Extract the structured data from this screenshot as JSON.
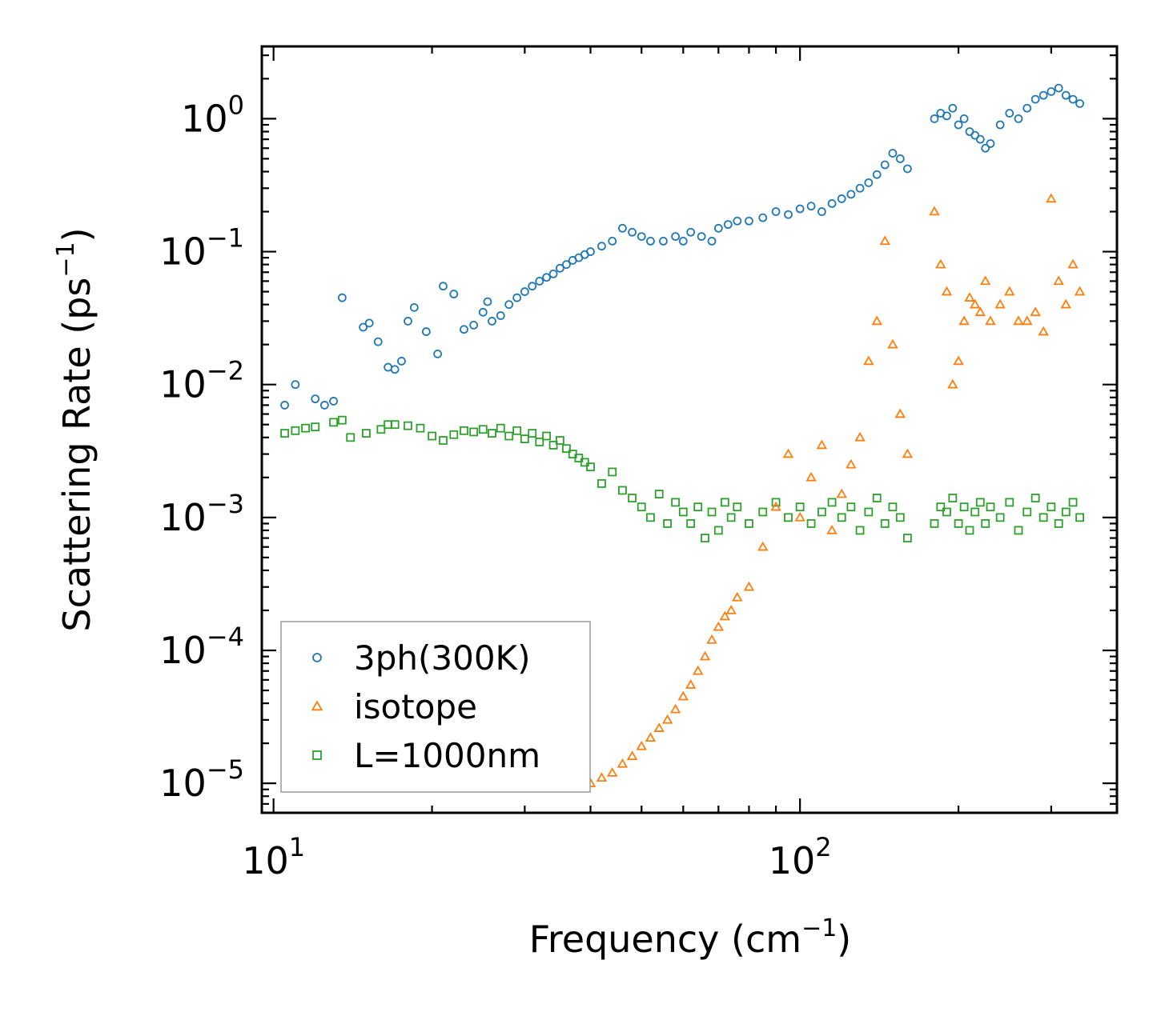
{
  "chart_data": {
    "type": "scatter",
    "title": "",
    "xlabel": "Frequency (cm",
    "xlabel_sup": "−1",
    "xlabel_end": ")",
    "ylabel": "Scattering Rate (ps",
    "ylabel_sup": "−1",
    "ylabel_end": ")",
    "xscale": "log",
    "yscale": "log",
    "xlim": [
      9.5,
      400
    ],
    "ylim": [
      6e-06,
      3.5
    ],
    "x_ticks": [
      {
        "value": 10,
        "base": "10",
        "exp": "1"
      },
      {
        "value": 100,
        "base": "10",
        "exp": "2"
      }
    ],
    "y_ticks": [
      {
        "value": 1,
        "base": "10",
        "exp": "0"
      },
      {
        "value": 0.1,
        "base": "10",
        "exp": "−1"
      },
      {
        "value": 0.01,
        "base": "10",
        "exp": "−2"
      },
      {
        "value": 0.001,
        "base": "10",
        "exp": "−3"
      },
      {
        "value": 0.0001,
        "base": "10",
        "exp": "−4"
      },
      {
        "value": 1e-05,
        "base": "10",
        "exp": "−5"
      }
    ],
    "legend_position": "lower-left",
    "series": [
      {
        "name": "3ph(300K)",
        "marker": "circle",
        "color": "#1f77b4",
        "x": [
          10.5,
          11,
          12,
          12.5,
          13,
          13.5,
          14.8,
          15.2,
          15.8,
          16.5,
          17,
          17.5,
          18,
          18.5,
          19.5,
          20.5,
          21,
          22,
          23,
          24,
          25,
          25.5,
          26,
          27,
          28,
          29,
          30,
          31,
          32,
          33,
          34,
          35,
          36,
          37,
          38,
          39,
          40,
          42,
          44,
          46,
          48,
          50,
          52,
          55,
          58,
          60,
          62,
          65,
          68,
          70,
          73,
          76,
          80,
          85,
          90,
          95,
          100,
          105,
          110,
          115,
          120,
          125,
          130,
          135,
          140,
          145,
          150,
          155,
          160,
          180,
          185,
          190,
          195,
          200,
          205,
          210,
          215,
          220,
          225,
          230,
          240,
          250,
          260,
          270,
          280,
          290,
          300,
          310,
          320,
          330,
          340
        ],
        "y": [
          0.007,
          0.01,
          0.0078,
          0.007,
          0.0075,
          0.045,
          0.027,
          0.029,
          0.021,
          0.0135,
          0.013,
          0.015,
          0.03,
          0.038,
          0.025,
          0.017,
          0.055,
          0.048,
          0.026,
          0.028,
          0.035,
          0.042,
          0.03,
          0.033,
          0.04,
          0.045,
          0.05,
          0.055,
          0.06,
          0.064,
          0.068,
          0.075,
          0.08,
          0.086,
          0.09,
          0.095,
          0.1,
          0.11,
          0.12,
          0.15,
          0.14,
          0.13,
          0.12,
          0.12,
          0.13,
          0.12,
          0.14,
          0.13,
          0.12,
          0.15,
          0.16,
          0.17,
          0.17,
          0.18,
          0.2,
          0.19,
          0.21,
          0.22,
          0.2,
          0.23,
          0.25,
          0.27,
          0.3,
          0.33,
          0.38,
          0.45,
          0.55,
          0.5,
          0.42,
          1.0,
          1.1,
          1.05,
          1.2,
          0.9,
          1.0,
          0.8,
          0.75,
          0.7,
          0.6,
          0.65,
          0.9,
          1.1,
          1.0,
          1.2,
          1.4,
          1.5,
          1.6,
          1.7,
          1.5,
          1.4,
          1.3
        ]
      },
      {
        "name": "isotope",
        "marker": "triangle",
        "color": "#ff7f0e",
        "x": [
          40,
          42,
          44,
          46,
          48,
          50,
          52,
          54,
          56,
          58,
          60,
          62,
          64,
          66,
          68,
          70,
          72,
          74,
          76,
          80,
          85,
          90,
          95,
          100,
          105,
          110,
          115,
          120,
          125,
          130,
          135,
          140,
          145,
          150,
          155,
          160,
          180,
          185,
          190,
          195,
          200,
          205,
          210,
          215,
          220,
          225,
          230,
          240,
          250,
          260,
          270,
          280,
          290,
          300,
          310,
          320,
          330,
          340
        ],
        "y": [
          1e-05,
          1.1e-05,
          1.2e-05,
          1.4e-05,
          1.6e-05,
          1.9e-05,
          2.2e-05,
          2.6e-05,
          3e-05,
          3.6e-05,
          4.5e-05,
          5.5e-05,
          7e-05,
          9e-05,
          0.00012,
          0.00015,
          0.00018,
          0.0002,
          0.00025,
          0.0003,
          0.0006,
          0.0012,
          0.003,
          0.001,
          0.002,
          0.0035,
          0.0008,
          0.0015,
          0.0025,
          0.004,
          0.015,
          0.03,
          0.12,
          0.02,
          0.006,
          0.003,
          0.2,
          0.08,
          0.05,
          0.01,
          0.015,
          0.03,
          0.045,
          0.04,
          0.035,
          0.06,
          0.03,
          0.04,
          0.05,
          0.03,
          0.03,
          0.035,
          0.025,
          0.25,
          0.06,
          0.04,
          0.08,
          0.05
        ]
      },
      {
        "name": "L=1000nm",
        "marker": "square",
        "color": "#2ca02c",
        "x": [
          10.5,
          11,
          11.5,
          12,
          13,
          13.5,
          14,
          15,
          16,
          16.5,
          17,
          18,
          19,
          20,
          21,
          22,
          23,
          24,
          25,
          26,
          27,
          28,
          29,
          30,
          31,
          32,
          33,
          34,
          35,
          36,
          37,
          38,
          39,
          40,
          42,
          44,
          46,
          48,
          50,
          52,
          54,
          56,
          58,
          60,
          62,
          64,
          66,
          68,
          70,
          72,
          74,
          76,
          80,
          85,
          90,
          95,
          100,
          105,
          110,
          115,
          120,
          125,
          130,
          135,
          140,
          145,
          150,
          155,
          160,
          180,
          185,
          190,
          195,
          200,
          205,
          210,
          215,
          220,
          225,
          230,
          240,
          250,
          260,
          270,
          280,
          290,
          300,
          310,
          320,
          330,
          340
        ],
        "y": [
          0.0043,
          0.0045,
          0.0047,
          0.0048,
          0.0052,
          0.0054,
          0.004,
          0.0043,
          0.0046,
          0.005,
          0.005,
          0.0049,
          0.0047,
          0.0041,
          0.0038,
          0.0042,
          0.0045,
          0.0044,
          0.0046,
          0.0043,
          0.0047,
          0.0041,
          0.0045,
          0.0039,
          0.0043,
          0.0037,
          0.0041,
          0.0035,
          0.0038,
          0.0033,
          0.003,
          0.0028,
          0.0026,
          0.0024,
          0.0018,
          0.0022,
          0.0016,
          0.0014,
          0.0012,
          0.001,
          0.0015,
          0.0009,
          0.0013,
          0.0011,
          0.0009,
          0.0012,
          0.0007,
          0.0011,
          0.0008,
          0.0013,
          0.001,
          0.0012,
          0.0009,
          0.0011,
          0.0013,
          0.001,
          0.0012,
          0.0009,
          0.0011,
          0.0013,
          0.001,
          0.0012,
          0.0008,
          0.0011,
          0.0014,
          0.0009,
          0.0012,
          0.001,
          0.0007,
          0.0009,
          0.0012,
          0.0011,
          0.0014,
          0.0009,
          0.0012,
          0.0008,
          0.0011,
          0.0013,
          0.0009,
          0.0012,
          0.001,
          0.0013,
          0.0008,
          0.0011,
          0.0014,
          0.001,
          0.0012,
          0.0009,
          0.0011,
          0.0013,
          0.001
        ]
      }
    ]
  }
}
